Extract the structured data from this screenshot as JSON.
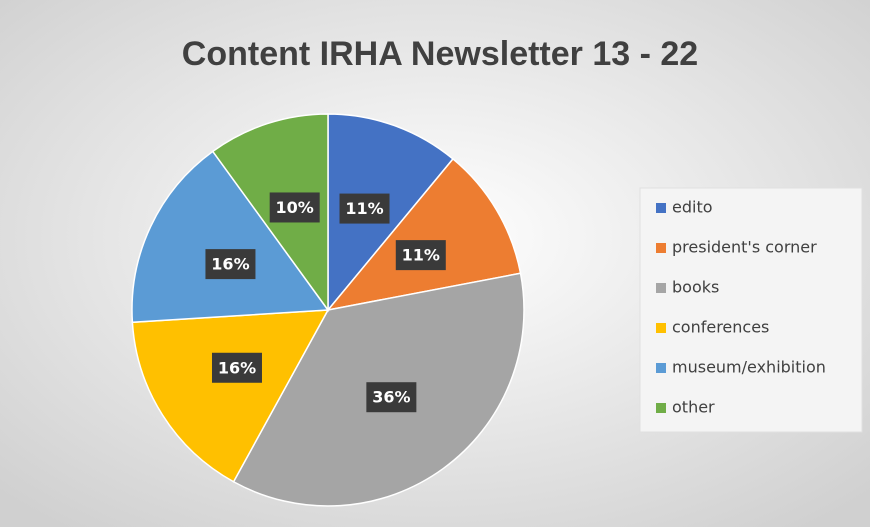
{
  "chart_data": {
    "type": "pie",
    "title": "Content IRHA Newsletter 13 - 22",
    "categories": [
      "edito",
      "president's corner",
      "books",
      "conferences",
      "museum/exhibition",
      "other"
    ],
    "values": [
      11,
      11,
      36,
      16,
      16,
      10
    ],
    "value_labels": [
      "11%",
      "11%",
      "36%",
      "16%",
      "16%",
      "10%"
    ],
    "colors": [
      "#4472c4",
      "#ed7d31",
      "#a5a5a5",
      "#ffc000",
      "#5b9bd5",
      "#70ad47"
    ],
    "legend": "right"
  }
}
